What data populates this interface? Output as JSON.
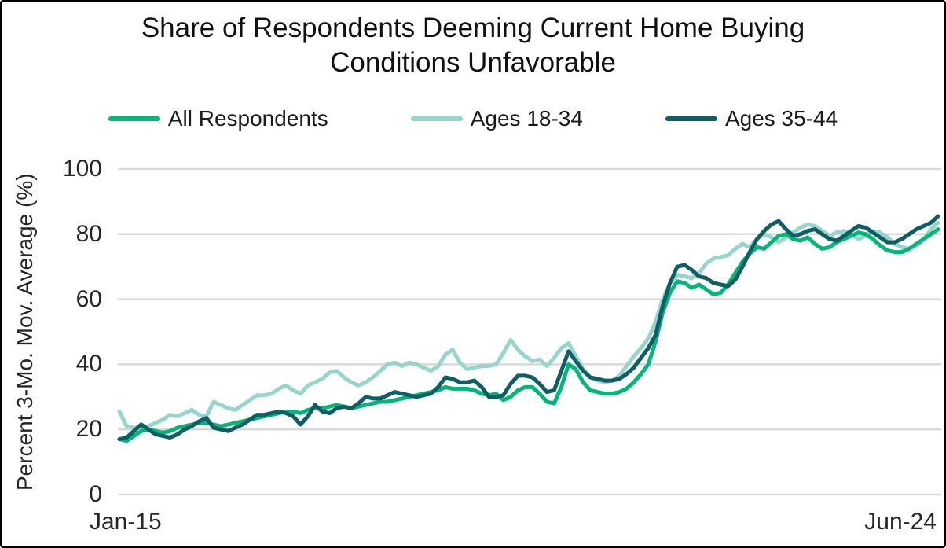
{
  "title": {
    "line1": "Share of Respondents Deeming Current Home Buying",
    "line2": "Conditions Unfavorable",
    "full": "Share of Respondents Deeming Current Home Buying Conditions Unfavorable"
  },
  "chart_data": {
    "type": "line",
    "title": "Share of Respondents Deeming Current Home Buying Conditions Unfavorable",
    "ylabel": "Percent 3-Mo. Mov. Average (%)",
    "xlabel": "",
    "x_unit": "monthly",
    "x_range": [
      "Jan-15",
      "Jun-24"
    ],
    "x_tick_labels": [
      "Jan-15",
      "Jun-24"
    ],
    "ylim": [
      0,
      100
    ],
    "yticks": [
      0,
      20,
      40,
      60,
      80,
      100
    ],
    "grid": "horizontal",
    "gridline_color": "#d9d9d9",
    "legend_position": "top",
    "draw_order": [
      1,
      0,
      2
    ],
    "series": [
      {
        "name": "All Respondents",
        "color": "#00b875",
        "values": [
          17,
          16.5,
          18,
          19.5,
          20,
          19.5,
          19,
          19.5,
          20.5,
          21,
          21.5,
          22,
          22,
          21.5,
          21,
          21.5,
          22,
          22.5,
          23,
          23.5,
          24,
          24.5,
          25,
          25.5,
          25.5,
          25,
          26,
          26.5,
          26.5,
          27,
          27.5,
          27,
          26.5,
          27,
          27.5,
          28,
          28.5,
          28.5,
          29,
          29.5,
          30,
          30.5,
          31,
          31.5,
          32,
          33,
          32.5,
          32.5,
          32.5,
          32,
          31,
          30.5,
          31,
          29,
          30,
          32,
          33,
          33,
          31,
          28.5,
          28,
          33,
          40,
          38.5,
          34.5,
          32,
          31.5,
          31,
          31,
          31.5,
          32.5,
          34.5,
          37,
          40,
          47,
          56,
          62,
          65.5,
          65,
          63.5,
          64.5,
          63,
          61.5,
          62,
          64.5,
          68,
          71.5,
          74,
          76,
          75.5,
          77.5,
          79.5,
          80,
          78.5,
          78,
          79,
          77,
          75.5,
          76,
          77.5,
          78.5,
          79.5,
          80.5,
          80,
          78.5,
          76.5,
          75,
          74.5,
          74.5,
          75.5,
          77,
          78.5,
          80,
          81.5
        ]
      },
      {
        "name": "Ages 18-34",
        "color": "#96d5cb",
        "values": [
          25.5,
          21,
          20.5,
          20.5,
          21,
          22,
          23,
          24.5,
          24,
          25,
          26,
          24.5,
          24,
          28.5,
          27.5,
          26.5,
          26,
          27.5,
          29,
          30.5,
          30.5,
          31,
          32.5,
          33.5,
          32,
          31,
          33.5,
          34.5,
          35.5,
          37.5,
          38,
          36,
          34.5,
          33.5,
          34.5,
          36,
          38,
          40,
          40.5,
          39.5,
          40.5,
          40,
          39,
          38,
          39.5,
          43,
          44.5,
          40.5,
          38.5,
          39,
          39.5,
          39.5,
          40,
          43.5,
          47.5,
          44.5,
          42.5,
          41,
          41.5,
          39.5,
          42,
          45,
          46.5,
          42.5,
          38.5,
          36,
          35,
          34.5,
          35,
          36.5,
          39.5,
          42.5,
          45,
          48,
          53,
          60,
          65,
          67.5,
          67,
          66.5,
          68,
          71,
          72.5,
          73,
          73.5,
          75.5,
          77,
          76,
          78.5,
          80,
          79,
          77.5,
          79,
          80.5,
          82,
          83,
          82.5,
          81,
          79.5,
          80.5,
          81,
          80,
          78.5,
          79.5,
          81,
          80.5,
          79,
          77,
          76,
          75.5,
          76.5,
          78.5,
          81.5,
          83.5
        ]
      },
      {
        "name": "Ages 35-44",
        "color": "#0e5e66",
        "values": [
          17,
          17.5,
          19.5,
          21.5,
          20,
          18.5,
          18,
          17.5,
          18.5,
          20,
          21,
          22.5,
          23.5,
          20.5,
          20,
          19.5,
          20.5,
          21.5,
          23,
          24.5,
          24.5,
          25,
          25.5,
          25,
          24,
          21.5,
          24,
          27.5,
          25.5,
          25,
          26.5,
          27,
          26.5,
          28,
          30,
          29.5,
          29.5,
          30.5,
          31.5,
          31,
          30.5,
          30,
          30.5,
          31,
          33,
          36,
          35.5,
          34.5,
          34.5,
          35,
          33,
          30,
          30,
          30.5,
          34,
          36.5,
          36.5,
          36,
          34,
          31.5,
          32,
          38,
          44,
          41,
          38,
          36,
          35.5,
          35,
          35,
          35.5,
          37,
          39,
          42,
          45,
          49,
          58,
          65,
          70,
          70.5,
          69,
          67,
          66.5,
          65,
          64.5,
          64,
          66,
          70,
          74.5,
          78.5,
          81,
          83,
          84,
          81.5,
          79.5,
          80,
          81,
          81.5,
          80,
          78.5,
          78,
          79.5,
          81,
          82.5,
          82,
          80.5,
          79,
          77.5,
          77.5,
          78.5,
          80,
          81.5,
          82.5,
          83.5,
          85.5
        ]
      }
    ]
  }
}
